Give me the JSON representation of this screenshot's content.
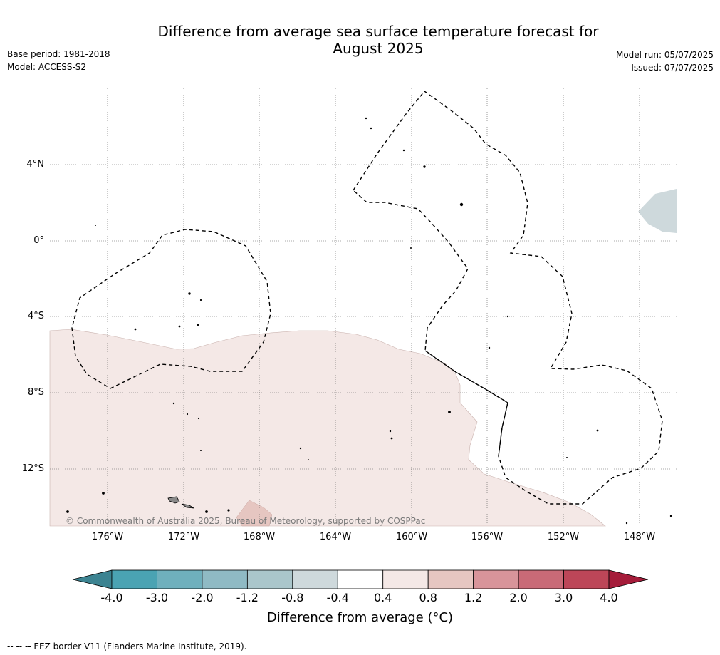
{
  "title": {
    "line1": "Difference from average sea surface temperature forecast for",
    "line2": "August 2025"
  },
  "meta_left": {
    "base_period": "Base period: 1981-2018",
    "model": "Model: ACCESS-S2"
  },
  "meta_right": {
    "model_run": "Model run: 05/07/2025",
    "issued": "Issued: 07/07/2025"
  },
  "map": {
    "lat_labels": [
      "4°N",
      "0°",
      "4°S",
      "8°S",
      "12°S"
    ],
    "lon_labels": [
      "176°W",
      "172°W",
      "168°W",
      "164°W",
      "160°W",
      "156°W",
      "152°W",
      "148°W"
    ],
    "copyright": "© Commonwealth of Australia 2025, Bureau of Meteorology, supported by COSPPac"
  },
  "colorbar": {
    "ticks": [
      "-4.0",
      "-3.0",
      "-2.0",
      "-1.2",
      "-0.8",
      "-0.4",
      "0.4",
      "0.8",
      "1.2",
      "2.0",
      "3.0",
      "4.0"
    ],
    "colors": [
      "#4aa3b3",
      "#6fb0bd",
      "#8fbac4",
      "#aac6cb",
      "#ced9dc",
      "#ffffff",
      "#f4e8e6",
      "#e6c6c1",
      "#d8949a",
      "#c96a77",
      "#bd4658"
    ],
    "under_color": "#3c8391",
    "over_color": "#a51c3a",
    "title": "Difference from average (°C)"
  },
  "footnote": "--  --  -- EEZ border V11 (Flanders Marine Institute, 2019)."
}
